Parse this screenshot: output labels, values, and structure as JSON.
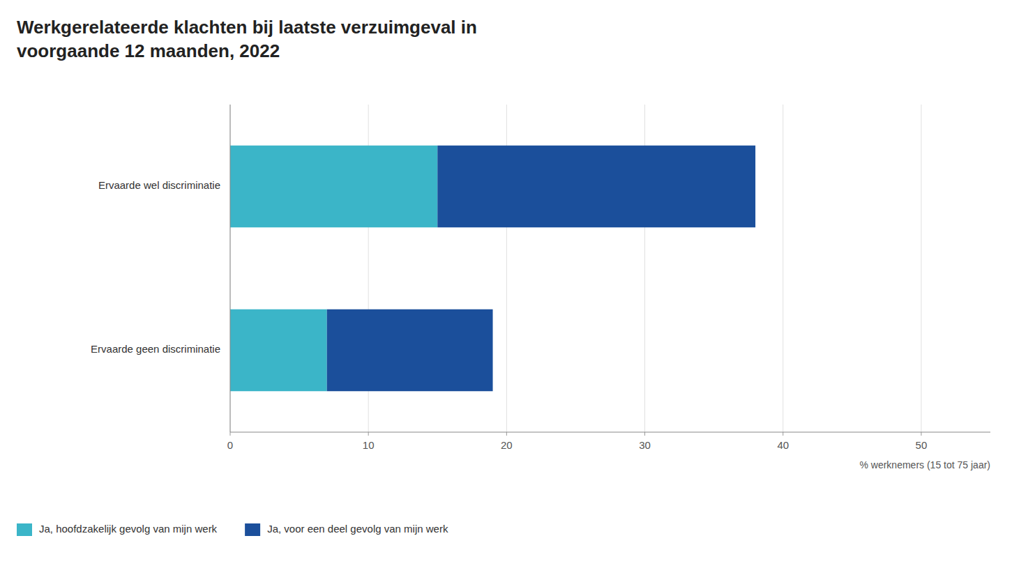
{
  "chart_data": {
    "type": "bar",
    "orientation": "horizontal",
    "stacked": true,
    "title": "Werkgerelateerde klachten bij laatste verzuimgeval in\nvoorgaande 12 maanden, 2022",
    "categories": [
      "Ervaarde wel discriminatie",
      "Ervaarde geen discriminatie"
    ],
    "series": [
      {
        "name": "Ja, hoofdzakelijk gevolg van mijn werk",
        "color": "#3bb5c8",
        "values": [
          15,
          7
        ]
      },
      {
        "name": "Ja, voor een deel gevolg van mijn werk",
        "color": "#1b4f9b",
        "values": [
          23,
          12
        ]
      }
    ],
    "x_label": "% werknemers (15 tot 75 jaar)",
    "xlim": [
      0,
      55
    ],
    "xticks": [
      0,
      10,
      20,
      30,
      40,
      50
    ],
    "grid": true,
    "legend": "bottom"
  }
}
